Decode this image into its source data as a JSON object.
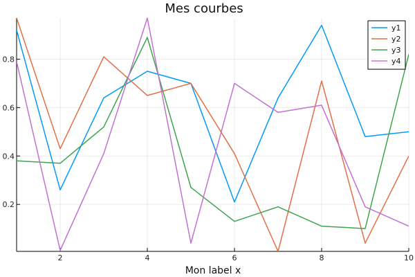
{
  "chart_data": {
    "type": "line",
    "title": "Mes courbes",
    "xlabel": "Mon label x",
    "ylabel": "",
    "xlim": [
      1,
      10
    ],
    "ylim": [
      0.006,
      0.97
    ],
    "xticks": [
      2,
      4,
      6,
      8,
      10
    ],
    "yticks": [
      0.2,
      0.4,
      0.6,
      0.8
    ],
    "grid": true,
    "legend_position": "top-right",
    "x": [
      1,
      2,
      3,
      4,
      5,
      6,
      7,
      8,
      9,
      10
    ],
    "series": [
      {
        "name": "y1",
        "color": "#009af9",
        "values": [
          0.92,
          0.26,
          0.64,
          0.75,
          0.7,
          0.21,
          0.64,
          0.94,
          0.48,
          0.5
        ]
      },
      {
        "name": "y2",
        "color": "#e26f46",
        "values": [
          0.97,
          0.43,
          0.81,
          0.65,
          0.7,
          0.41,
          0.006,
          0.71,
          0.04,
          0.4
        ]
      },
      {
        "name": "y3",
        "color": "#3da44d",
        "values": [
          0.38,
          0.37,
          0.52,
          0.89,
          0.27,
          0.13,
          0.19,
          0.11,
          0.1,
          0.82
        ]
      },
      {
        "name": "y4",
        "color": "#c271d2",
        "values": [
          0.79,
          0.01,
          0.41,
          0.97,
          0.04,
          0.7,
          0.58,
          0.61,
          0.19,
          0.11
        ]
      }
    ]
  }
}
